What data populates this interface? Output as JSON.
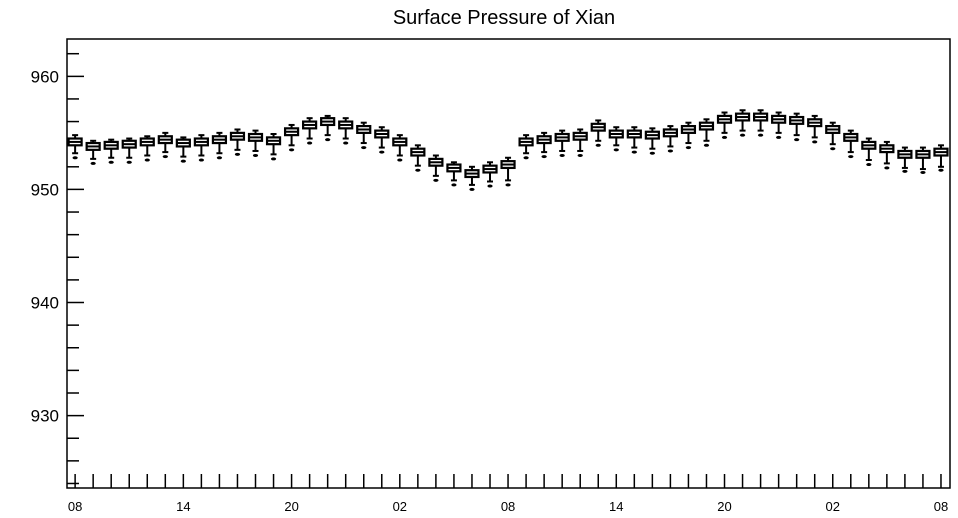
{
  "chart_data": {
    "type": "box",
    "title": "Surface Pressure of Xian",
    "xlabel": "",
    "ylabel": "",
    "ylim": [
      923.6,
      963.3
    ],
    "yticks_major": [
      930,
      940,
      950,
      960
    ],
    "yticks_minor_step": 2,
    "xlim": [
      -0.45,
      48.5
    ],
    "x_tick_labels": [
      {
        "x": 0,
        "label": "08"
      },
      {
        "x": 6,
        "label": "14"
      },
      {
        "x": 12,
        "label": "20"
      },
      {
        "x": 18,
        "label": "02"
      },
      {
        "x": 24,
        "label": "08"
      },
      {
        "x": 30,
        "label": "14"
      },
      {
        "x": 36,
        "label": "20"
      },
      {
        "x": 42,
        "label": "02"
      },
      {
        "x": 48,
        "label": "08"
      }
    ],
    "grid": false,
    "series": [
      {
        "x": [
          0,
          1,
          2,
          3,
          4,
          5,
          6,
          7,
          8,
          9,
          10,
          11,
          12,
          13,
          14,
          15,
          16,
          17,
          18,
          19,
          20,
          21,
          22,
          23,
          24,
          25,
          26,
          27,
          28,
          29,
          30,
          31,
          32,
          33,
          34,
          35,
          36,
          37,
          38,
          39,
          40,
          41,
          42,
          43,
          44,
          45,
          46,
          47,
          48
        ],
        "q1": [
          953.9,
          953.5,
          953.6,
          953.7,
          953.9,
          954.1,
          953.8,
          953.9,
          954.1,
          954.4,
          954.3,
          954.0,
          954.8,
          955.4,
          955.7,
          955.4,
          955.0,
          954.6,
          953.9,
          953.0,
          952.1,
          951.6,
          951.1,
          951.5,
          951.9,
          953.9,
          954.1,
          954.3,
          954.4,
          955.2,
          954.6,
          954.6,
          954.5,
          954.7,
          955.0,
          955.3,
          955.9,
          956.1,
          956.1,
          955.9,
          955.8,
          955.6,
          955.0,
          954.3,
          953.6,
          953.3,
          952.8,
          952.8,
          953.0
        ],
        "median": [
          954.2,
          953.8,
          953.9,
          954.0,
          954.2,
          954.4,
          954.1,
          954.2,
          954.4,
          954.7,
          954.6,
          954.3,
          955.1,
          955.7,
          956.0,
          955.7,
          955.3,
          954.9,
          954.2,
          953.3,
          952.4,
          951.9,
          951.4,
          951.8,
          952.2,
          954.2,
          954.4,
          954.6,
          954.7,
          955.5,
          954.9,
          954.9,
          954.8,
          955.0,
          955.3,
          955.6,
          956.2,
          956.4,
          956.4,
          956.2,
          956.1,
          955.9,
          955.3,
          954.6,
          953.9,
          953.6,
          953.1,
          953.1,
          953.3
        ],
        "q3": [
          954.5,
          954.1,
          954.2,
          954.3,
          954.5,
          954.7,
          954.4,
          954.5,
          954.7,
          955.0,
          954.9,
          954.6,
          955.4,
          956.0,
          956.3,
          956.0,
          955.6,
          955.2,
          954.5,
          953.6,
          952.7,
          952.2,
          951.7,
          952.1,
          952.5,
          954.5,
          954.7,
          954.9,
          955.0,
          955.8,
          955.2,
          955.2,
          955.1,
          955.3,
          955.6,
          955.9,
          956.5,
          956.7,
          956.7,
          956.5,
          956.4,
          956.2,
          955.6,
          954.9,
          954.2,
          953.9,
          953.4,
          953.4,
          953.6
        ],
        "whisker_low": [
          953.2,
          952.7,
          952.8,
          952.8,
          953.0,
          953.3,
          952.9,
          953.0,
          953.2,
          953.5,
          953.4,
          953.1,
          953.9,
          954.5,
          954.8,
          954.5,
          954.1,
          953.7,
          953.0,
          952.1,
          951.2,
          950.8,
          950.4,
          950.7,
          950.8,
          953.2,
          953.3,
          953.4,
          953.4,
          954.3,
          953.9,
          953.7,
          953.6,
          953.8,
          954.1,
          954.3,
          955.0,
          955.2,
          955.2,
          955.0,
          954.8,
          954.6,
          954.0,
          953.3,
          952.6,
          952.3,
          951.9,
          951.8,
          952.0
        ],
        "whisker_high": [
          954.8,
          954.3,
          954.4,
          954.5,
          954.7,
          955.0,
          954.6,
          954.8,
          955.0,
          955.3,
          955.2,
          954.9,
          955.7,
          956.3,
          956.5,
          956.3,
          955.9,
          955.5,
          954.8,
          953.9,
          953.0,
          952.4,
          952.0,
          952.4,
          952.8,
          954.8,
          955.0,
          955.2,
          955.3,
          956.1,
          955.5,
          955.5,
          955.4,
          955.6,
          955.9,
          956.2,
          956.8,
          957.0,
          957.0,
          956.8,
          956.7,
          956.5,
          955.9,
          955.2,
          954.5,
          954.2,
          953.7,
          953.7,
          953.9
        ],
        "outliers": [
          952.8,
          952.3,
          952.4,
          952.4,
          952.6,
          952.9,
          952.5,
          952.6,
          952.8,
          953.1,
          953.0,
          952.7,
          953.5,
          954.1,
          954.4,
          954.1,
          953.7,
          953.3,
          952.6,
          951.7,
          950.8,
          950.4,
          950.0,
          950.3,
          950.4,
          952.8,
          952.9,
          953.0,
          953.0,
          953.9,
          953.5,
          953.3,
          953.2,
          953.4,
          953.7,
          953.9,
          954.6,
          954.8,
          954.8,
          954.6,
          954.4,
          954.2,
          953.6,
          952.9,
          952.2,
          951.9,
          951.6,
          951.5,
          951.7
        ]
      }
    ]
  }
}
